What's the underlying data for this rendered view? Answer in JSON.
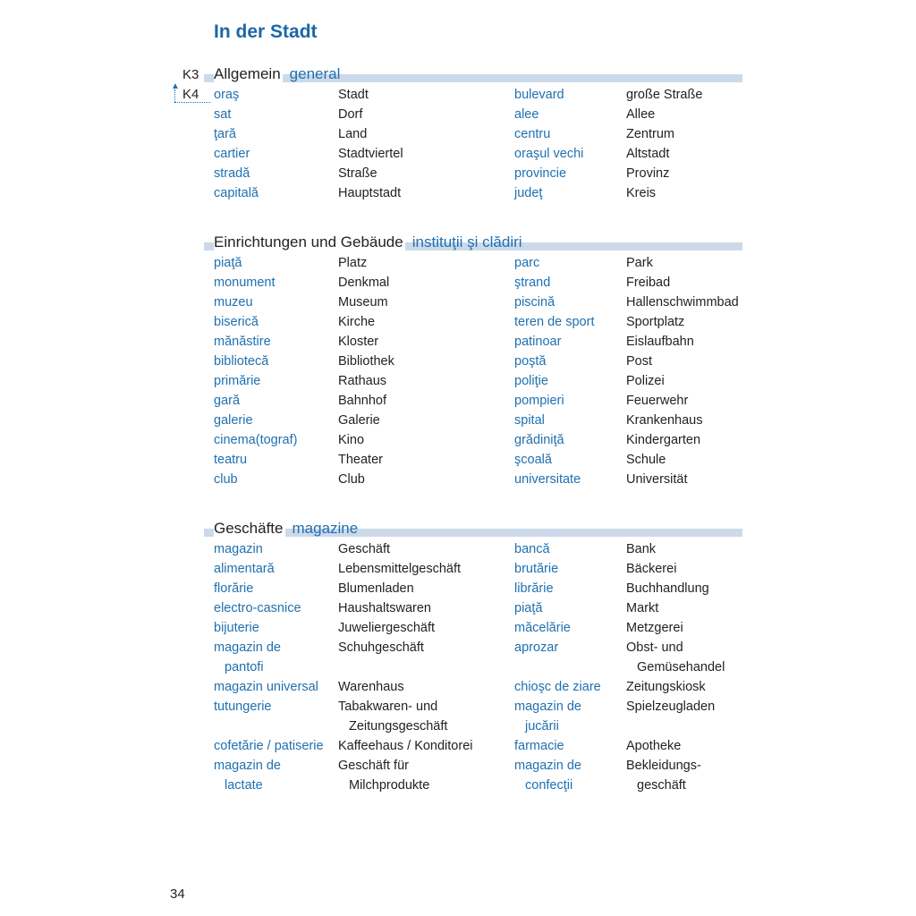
{
  "title": "In der Stadt",
  "markers": {
    "k3": "K3",
    "k4": "K4"
  },
  "page_number": "34",
  "colors": {
    "accent": "#1f70b0",
    "header_bar": "#ccd9ea"
  },
  "sections": [
    {
      "de": "Allgemein",
      "ro": "general",
      "rows": [
        {
          "ro": [
            "oraş"
          ],
          "de": [
            "Stadt"
          ],
          "ro_r": [
            "bulevard"
          ],
          "de_r": [
            "große Straße"
          ]
        },
        {
          "ro": [
            "sat"
          ],
          "de": [
            "Dorf"
          ],
          "ro_r": [
            "alee"
          ],
          "de_r": [
            "Allee"
          ]
        },
        {
          "ro": [
            "ţară"
          ],
          "de": [
            "Land"
          ],
          "ro_r": [
            "centru"
          ],
          "de_r": [
            "Zentrum"
          ]
        },
        {
          "ro": [
            "cartier"
          ],
          "de": [
            "Stadtviertel"
          ],
          "ro_r": [
            "oraşul vechi"
          ],
          "de_r": [
            "Altstadt"
          ]
        },
        {
          "ro": [
            "stradă"
          ],
          "de": [
            "Straße"
          ],
          "ro_r": [
            "provincie"
          ],
          "de_r": [
            "Provinz"
          ]
        },
        {
          "ro": [
            "capitală"
          ],
          "de": [
            "Hauptstadt"
          ],
          "ro_r": [
            "judeţ"
          ],
          "de_r": [
            "Kreis"
          ]
        }
      ]
    },
    {
      "de": "Einrichtungen und Gebäude",
      "ro": "instituţii şi clădiri",
      "rows": [
        {
          "ro": [
            "piaţă"
          ],
          "de": [
            "Platz"
          ],
          "ro_r": [
            "parc"
          ],
          "de_r": [
            "Park"
          ]
        },
        {
          "ro": [
            "monument"
          ],
          "de": [
            "Denkmal"
          ],
          "ro_r": [
            "ştrand"
          ],
          "de_r": [
            "Freibad"
          ]
        },
        {
          "ro": [
            "muzeu"
          ],
          "de": [
            "Museum"
          ],
          "ro_r": [
            "piscină"
          ],
          "de_r": [
            "Hallenschwimmbad"
          ]
        },
        {
          "ro": [
            "biserică"
          ],
          "de": [
            "Kirche"
          ],
          "ro_r": [
            "teren de sport"
          ],
          "de_r": [
            "Sportplatz"
          ]
        },
        {
          "ro": [
            "mănăstire"
          ],
          "de": [
            "Kloster"
          ],
          "ro_r": [
            "patinoar"
          ],
          "de_r": [
            "Eislaufbahn"
          ]
        },
        {
          "ro": [
            "bibliotecă"
          ],
          "de": [
            "Bibliothek"
          ],
          "ro_r": [
            "poştă"
          ],
          "de_r": [
            "Post"
          ]
        },
        {
          "ro": [
            "primărie"
          ],
          "de": [
            "Rathaus"
          ],
          "ro_r": [
            "poliţie"
          ],
          "de_r": [
            "Polizei"
          ]
        },
        {
          "ro": [
            "gară"
          ],
          "de": [
            "Bahnhof"
          ],
          "ro_r": [
            "pompieri"
          ],
          "de_r": [
            "Feuerwehr"
          ]
        },
        {
          "ro": [
            "galerie"
          ],
          "de": [
            "Galerie"
          ],
          "ro_r": [
            "spital"
          ],
          "de_r": [
            "Krankenhaus"
          ]
        },
        {
          "ro": [
            "cinema(tograf)"
          ],
          "de": [
            "Kino"
          ],
          "ro_r": [
            "grădiniţă"
          ],
          "de_r": [
            "Kindergarten"
          ]
        },
        {
          "ro": [
            "teatru"
          ],
          "de": [
            "Theater"
          ],
          "ro_r": [
            "şcoală"
          ],
          "de_r": [
            "Schule"
          ]
        },
        {
          "ro": [
            "club"
          ],
          "de": [
            "Club"
          ],
          "ro_r": [
            "universitate"
          ],
          "de_r": [
            "Universität"
          ]
        }
      ]
    },
    {
      "de": "Geschäfte",
      "ro": "magazine",
      "rows": [
        {
          "ro": [
            "magazin"
          ],
          "de": [
            "Geschäft"
          ],
          "ro_r": [
            "bancă"
          ],
          "de_r": [
            "Bank"
          ]
        },
        {
          "ro": [
            "alimentară"
          ],
          "de": [
            "Lebensmittelgeschäft"
          ],
          "ro_r": [
            "brutărie"
          ],
          "de_r": [
            "Bäckerei"
          ]
        },
        {
          "ro": [
            "florărie"
          ],
          "de": [
            "Blumenladen"
          ],
          "ro_r": [
            "librărie"
          ],
          "de_r": [
            "Buchhandlung"
          ]
        },
        {
          "ro": [
            "electro-casnice"
          ],
          "de": [
            "Haushaltswaren"
          ],
          "ro_r": [
            "piaţă"
          ],
          "de_r": [
            "Markt"
          ]
        },
        {
          "ro": [
            "bijuterie"
          ],
          "de": [
            "Juweliergeschäft"
          ],
          "ro_r": [
            "măcelărie"
          ],
          "de_r": [
            "Metzgerei"
          ]
        },
        {
          "ro": [
            "magazin de",
            "pantofi"
          ],
          "de": [
            "Schuhgeschäft"
          ],
          "ro_r": [
            "aprozar"
          ],
          "de_r": [
            "Obst- und",
            "Gemüsehandel"
          ]
        },
        {
          "ro": [
            "magazin universal"
          ],
          "de": [
            "Warenhaus"
          ],
          "ro_r": [
            "chioşc de ziare"
          ],
          "de_r": [
            "Zeitungskiosk"
          ]
        },
        {
          "ro": [
            "tutungerie"
          ],
          "de": [
            "Tabakwaren- und",
            "Zeitungsgeschäft"
          ],
          "ro_r": [
            "magazin de",
            "jucării"
          ],
          "de_r": [
            "Spielzeugladen"
          ]
        },
        {
          "ro": [
            "cofetărie / patiserie"
          ],
          "de": [
            "Kaffeehaus / Konditorei"
          ],
          "ro_r": [
            "farmacie"
          ],
          "de_r": [
            "Apotheke"
          ]
        },
        {
          "ro": [
            "magazin de",
            "lactate"
          ],
          "de": [
            "Geschäft für",
            "Milchprodukte"
          ],
          "ro_r": [
            "magazin de",
            "confecţii"
          ],
          "de_r": [
            "Bekleidungs-",
            "geschäft"
          ]
        }
      ]
    }
  ]
}
